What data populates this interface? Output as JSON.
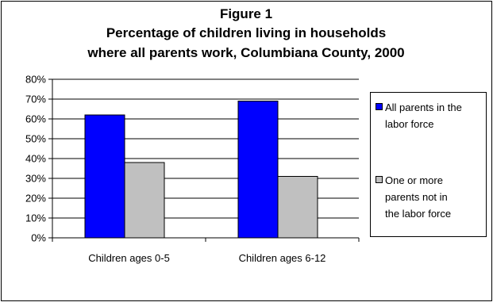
{
  "chart_data": {
    "type": "bar",
    "title": [
      "Figure 1",
      "Percentage of children living in households",
      "where all parents work, Columbiana County, 2000"
    ],
    "categories": [
      "Children ages 0-5",
      "Children ages 6-12"
    ],
    "series": [
      {
        "name": "All parents in the labor force",
        "name_lines": [
          "All parents in the",
          "labor force"
        ],
        "values": [
          62,
          69
        ],
        "color": "#0000ff"
      },
      {
        "name": "One or more parents not in the labor force",
        "name_lines": [
          "One or more",
          "parents not in",
          "the labor force"
        ],
        "values": [
          38,
          31
        ],
        "color": "#c0c0c0"
      }
    ],
    "yticks": [
      "0%",
      "10%",
      "20%",
      "30%",
      "40%",
      "50%",
      "60%",
      "70%",
      "80%"
    ],
    "ylim": [
      0,
      80
    ],
    "ytick_step": 10,
    "grid": true,
    "legend": "right",
    "xlabel": "",
    "ylabel": ""
  }
}
